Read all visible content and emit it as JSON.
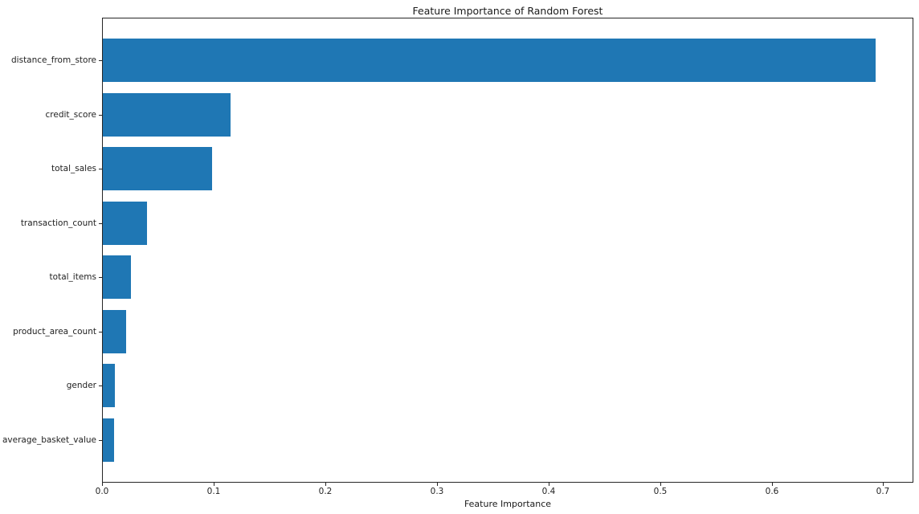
{
  "figure": {
    "title": "Feature Importance of Random Forest",
    "xlabel": "Feature Importance"
  },
  "chart_data": {
    "type": "bar",
    "orientation": "horizontal",
    "title": "Feature Importance of Random Forest",
    "xlabel": "Feature Importance",
    "ylabel": "",
    "categories": [
      "distance_from_store",
      "credit_score",
      "total_sales",
      "transaction_count",
      "total_items",
      "product_area_count",
      "gender",
      "average_basket_value"
    ],
    "values": [
      0.694,
      0.115,
      0.098,
      0.04,
      0.025,
      0.021,
      0.011,
      0.01
    ],
    "xlim": [
      0,
      0.727
    ],
    "xticks": [
      0.0,
      0.1,
      0.2,
      0.3,
      0.4,
      0.5,
      0.6,
      0.7
    ],
    "xtick_labels": [
      "0.0",
      "0.1",
      "0.2",
      "0.3",
      "0.4",
      "0.5",
      "0.6",
      "0.7"
    ],
    "bar_color": "#1f77b4",
    "grid": false,
    "legend_position": "none",
    "background_color": "#ffffff"
  }
}
